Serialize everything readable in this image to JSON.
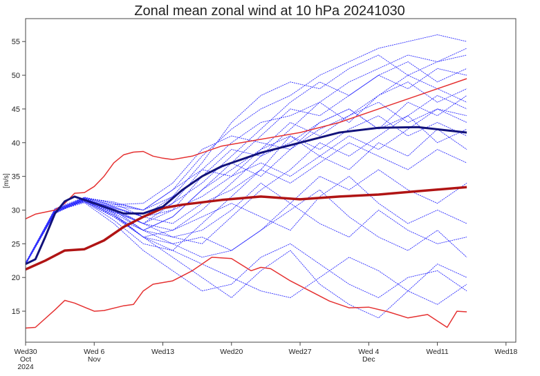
{
  "chart_data": {
    "type": "line",
    "title": "Zonal mean zonal wind at 10 hPa 20241030",
    "ylabel": "[m/s]",
    "xlabel": "",
    "ylim": [
      10.4,
      58.4
    ],
    "xlim_days": [
      0,
      50
    ],
    "yticks": [
      15,
      20,
      25,
      30,
      35,
      40,
      45,
      50,
      55
    ],
    "xticks": [
      {
        "day": 0,
        "lines": [
          "Wed30",
          "Oct",
          "2024"
        ]
      },
      {
        "day": 7,
        "lines": [
          "Wed 6",
          "Nov"
        ]
      },
      {
        "day": 14,
        "lines": [
          "Wed13"
        ]
      },
      {
        "day": 21,
        "lines": [
          "Wed20"
        ]
      },
      {
        "day": 28,
        "lines": [
          "Wed27"
        ]
      },
      {
        "day": 35,
        "lines": [
          "Wed 4",
          "Dec"
        ]
      },
      {
        "day": 42,
        "lines": [
          "Wed11"
        ]
      },
      {
        "day": 49,
        "lines": [
          "Wed18"
        ]
      }
    ],
    "grid": false,
    "colors": {
      "members": "#2a2aff",
      "ensemble_mean": "#12127a",
      "climatology_mean": "#b01414",
      "climatology_extremes": "#e53030"
    },
    "member_days": [
      0,
      3,
      6,
      9,
      12,
      15,
      18,
      21,
      24,
      27,
      30,
      33,
      36,
      39,
      42,
      45
    ],
    "members": [
      [
        22,
        30,
        31.8,
        31,
        30,
        33,
        38,
        42,
        45,
        47,
        50,
        52,
        54,
        55,
        56,
        55
      ],
      [
        22.2,
        29.5,
        31.5,
        30,
        28,
        31,
        36,
        40,
        43,
        44,
        46,
        49,
        51,
        53,
        52,
        54
      ],
      [
        21.9,
        30.2,
        31.2,
        29,
        27,
        29,
        33,
        37,
        41,
        45,
        44,
        47,
        50,
        48,
        51,
        50
      ],
      [
        22,
        29.8,
        31.9,
        30.5,
        29,
        30,
        35,
        39,
        38,
        42,
        46,
        43,
        47,
        50,
        48,
        46
      ],
      [
        22.1,
        30,
        31.4,
        29.5,
        26,
        27,
        30,
        34,
        38,
        40,
        43,
        45,
        42,
        46,
        44,
        47
      ],
      [
        22,
        29.6,
        31.7,
        30.8,
        31,
        34,
        39,
        41,
        40,
        39,
        42,
        44,
        46,
        43,
        45,
        44
      ],
      [
        22,
        29.9,
        31.3,
        28.5,
        25,
        24,
        28,
        32,
        36,
        41,
        39,
        42,
        44,
        41,
        43,
        41
      ],
      [
        22.1,
        30.1,
        31.6,
        30,
        27,
        26,
        25,
        29,
        33,
        36,
        40,
        38,
        41,
        44,
        40,
        42
      ],
      [
        21.9,
        29.7,
        31.5,
        29.8,
        28,
        30,
        32,
        35,
        37,
        35,
        38,
        41,
        39,
        42,
        45,
        43
      ],
      [
        22,
        30,
        31.8,
        31.2,
        30,
        32,
        37,
        43,
        47,
        49,
        48,
        51,
        53,
        50,
        52,
        53
      ],
      [
        22,
        29.8,
        31.1,
        28,
        24,
        21,
        18,
        19,
        23,
        25,
        22,
        19,
        17,
        20,
        21,
        18
      ],
      [
        22.1,
        30.1,
        31.5,
        29,
        26,
        23,
        20,
        17,
        21,
        24,
        19,
        16,
        14,
        18,
        22,
        20
      ],
      [
        22,
        29.9,
        31.4,
        29.6,
        27,
        25,
        23,
        24,
        27,
        30,
        33,
        29,
        26,
        24,
        27,
        23
      ],
      [
        21.9,
        29.5,
        31.7,
        30.2,
        28,
        27,
        29,
        31,
        29,
        27,
        32,
        35,
        31,
        28,
        30,
        28
      ],
      [
        22,
        30,
        31.6,
        30.4,
        29,
        28,
        31,
        33,
        36,
        34,
        37,
        40,
        38,
        36,
        39,
        37
      ],
      [
        22.2,
        30.2,
        31.9,
        31,
        29,
        31,
        34,
        38,
        42,
        46,
        49,
        47,
        50,
        52,
        49,
        51
      ],
      [
        22,
        29.7,
        31.3,
        29.2,
        26,
        24,
        22,
        20,
        18,
        17,
        20,
        23,
        21,
        18,
        16,
        19
      ],
      [
        22,
        30,
        31.6,
        30,
        27,
        29,
        33,
        36,
        39,
        43,
        41,
        44,
        47,
        49,
        46,
        48
      ],
      [
        22.1,
        29.8,
        31.5,
        29.7,
        28,
        26,
        27,
        30,
        34,
        31,
        35,
        33,
        36,
        33,
        31,
        34
      ],
      [
        21.9,
        30,
        31.8,
        30.6,
        30,
        33,
        36,
        35,
        39,
        41,
        38,
        36,
        40,
        38,
        42,
        39
      ],
      [
        22,
        29.9,
        31.4,
        29.3,
        26,
        25,
        26,
        24,
        27,
        31,
        28,
        26,
        30,
        27,
        25,
        26
      ],
      [
        22,
        30.1,
        31.7,
        30.3,
        29,
        32,
        35,
        37,
        35,
        39,
        43,
        45,
        42,
        44,
        47,
        45
      ]
    ],
    "ensemble_mean": {
      "x": [
        0,
        1,
        2,
        3,
        4,
        5,
        6,
        8,
        10,
        12,
        14,
        16,
        18,
        20,
        24,
        28,
        32,
        36,
        40,
        45
      ],
      "y": [
        22,
        22.7,
        26,
        29.5,
        31.3,
        32,
        31.5,
        30.5,
        29.5,
        29.5,
        30.5,
        33,
        35,
        36.5,
        38.5,
        40,
        41.5,
        42.2,
        42.3,
        41.5
      ]
    },
    "climatology_mean": {
      "x": [
        0,
        2,
        4,
        6,
        8,
        10,
        12,
        14,
        16,
        20,
        24,
        28,
        32,
        36,
        40,
        45
      ],
      "y": [
        21.2,
        22.5,
        24,
        24.2,
        25.5,
        27.5,
        29,
        30.3,
        30.8,
        31.5,
        32,
        31.6,
        32,
        32.3,
        32.8,
        33.4
      ]
    },
    "climatology_max": {
      "x": [
        0,
        1,
        3,
        4,
        5,
        6,
        7,
        8,
        9,
        10,
        11,
        12,
        13,
        14,
        15,
        17,
        20,
        24,
        28,
        32,
        36,
        40,
        45
      ],
      "y": [
        28.7,
        29.4,
        30,
        31,
        32.5,
        32.6,
        33.5,
        35,
        37,
        38.2,
        38.6,
        38.7,
        38,
        37.7,
        37.5,
        38,
        39.5,
        40.5,
        41.5,
        43,
        45,
        47,
        49.5
      ]
    },
    "climatology_min": {
      "x": [
        0,
        1,
        3,
        4,
        5,
        7,
        8,
        10,
        11,
        12,
        13,
        15,
        17,
        19,
        21,
        23,
        24,
        25,
        27,
        29,
        31,
        33,
        35,
        37,
        39,
        41,
        43,
        44,
        45
      ],
      "y": [
        12.5,
        12.6,
        15.2,
        16.6,
        16.2,
        15,
        15.1,
        15.8,
        16,
        18,
        19,
        19.5,
        21,
        23,
        22.8,
        21,
        21.5,
        21.3,
        19.5,
        18,
        16.5,
        15.5,
        15.6,
        14.9,
        14,
        14.5,
        12.6,
        15,
        14.9
      ]
    }
  }
}
